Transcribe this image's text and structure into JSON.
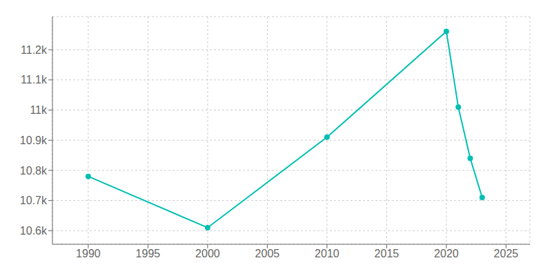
{
  "chart_data": {
    "type": "line",
    "x": [
      1990,
      2000,
      2010,
      2020,
      2021,
      2022,
      2023
    ],
    "values": [
      10780,
      10610,
      10910,
      11261,
      11010,
      10840,
      10710
    ],
    "color": "#00bfb3",
    "marker": "circle",
    "xlim": [
      1987,
      2027
    ],
    "xticks": [
      1990,
      1995,
      2000,
      2005,
      2010,
      2015,
      2020,
      2025
    ],
    "ylim": [
      10555,
      11310
    ],
    "yticks": [
      {
        "value": 10600,
        "label": "10.6k"
      },
      {
        "value": 10700,
        "label": "10.7k"
      },
      {
        "value": 10800,
        "label": "10.8k"
      },
      {
        "value": 10900,
        "label": "10.9k"
      },
      {
        "value": 11000,
        "label": "11k"
      },
      {
        "value": 11100,
        "label": "11.1k"
      },
      {
        "value": 11200,
        "label": "11.2k"
      }
    ],
    "grid": true
  }
}
